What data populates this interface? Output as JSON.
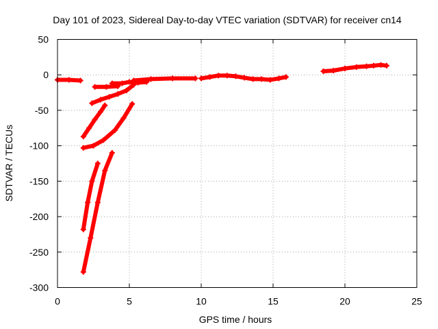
{
  "chart_data": {
    "type": "scatter",
    "title": "Day 101 of 2023, Sidereal Day-to-day VTEC variation (SDTVAR) for receiver cn14",
    "xlabel": "GPS time / hours",
    "ylabel": "SDTVAR / TECUs",
    "xlim": [
      0,
      25
    ],
    "ylim": [
      -300,
      50
    ],
    "x_ticks": [
      "0",
      "5",
      "10",
      "15",
      "20",
      "25"
    ],
    "y_ticks": [
      "50",
      "0",
      "-50",
      "-100",
      "-150",
      "-200",
      "-250",
      "-300"
    ],
    "grid": true,
    "legend": "none",
    "marker_color": "#ff0000",
    "series": [
      {
        "x": [
          0.0,
          0.8,
          1.6
        ],
        "y": [
          -7,
          -7,
          -8
        ]
      },
      {
        "x": [
          2.6,
          3.4,
          4.2
        ],
        "y": [
          -17,
          -17,
          -16
        ]
      },
      {
        "x": [
          3.8,
          4.5,
          5.0,
          5.6,
          6.2
        ],
        "y": [
          -12,
          -12,
          -10,
          -11,
          -10
        ]
      },
      {
        "x": [
          5.3,
          6.5,
          8.0,
          9.6
        ],
        "y": [
          -8,
          -6,
          -5,
          -5
        ]
      },
      {
        "x": [
          10.0,
          10.6,
          11.2,
          11.8,
          12.4,
          13.0,
          13.6,
          14.2,
          14.8,
          15.4,
          15.9
        ],
        "y": [
          -5,
          -3,
          -1,
          -1,
          -2,
          -4,
          -6,
          -6,
          -7,
          -5,
          -3
        ]
      },
      {
        "x": [
          18.5,
          19.2,
          20.0,
          20.8,
          21.5,
          22.0,
          22.5,
          22.9
        ],
        "y": [
          5,
          6,
          9,
          11,
          12,
          13,
          14,
          13
        ]
      },
      {
        "x": [
          2.4,
          3.0,
          3.6,
          4.2,
          4.8,
          5.3
        ],
        "y": [
          -40,
          -35,
          -31,
          -27,
          -22,
          -14
        ]
      },
      {
        "x": [
          1.8,
          2.2,
          2.6,
          3.0,
          3.3
        ],
        "y": [
          -87,
          -75,
          -63,
          -52,
          -43
        ]
      },
      {
        "x": [
          1.8,
          2.5,
          3.2,
          4.0,
          4.6,
          5.2
        ],
        "y": [
          -103,
          -100,
          -92,
          -78,
          -61,
          -41
        ]
      },
      {
        "x": [
          1.8,
          2.1,
          2.4,
          2.8
        ],
        "y": [
          -218,
          -180,
          -150,
          -125
        ]
      },
      {
        "x": [
          1.8,
          2.3,
          2.8,
          3.3,
          3.8
        ],
        "y": [
          -278,
          -230,
          -180,
          -135,
          -110
        ]
      }
    ]
  }
}
